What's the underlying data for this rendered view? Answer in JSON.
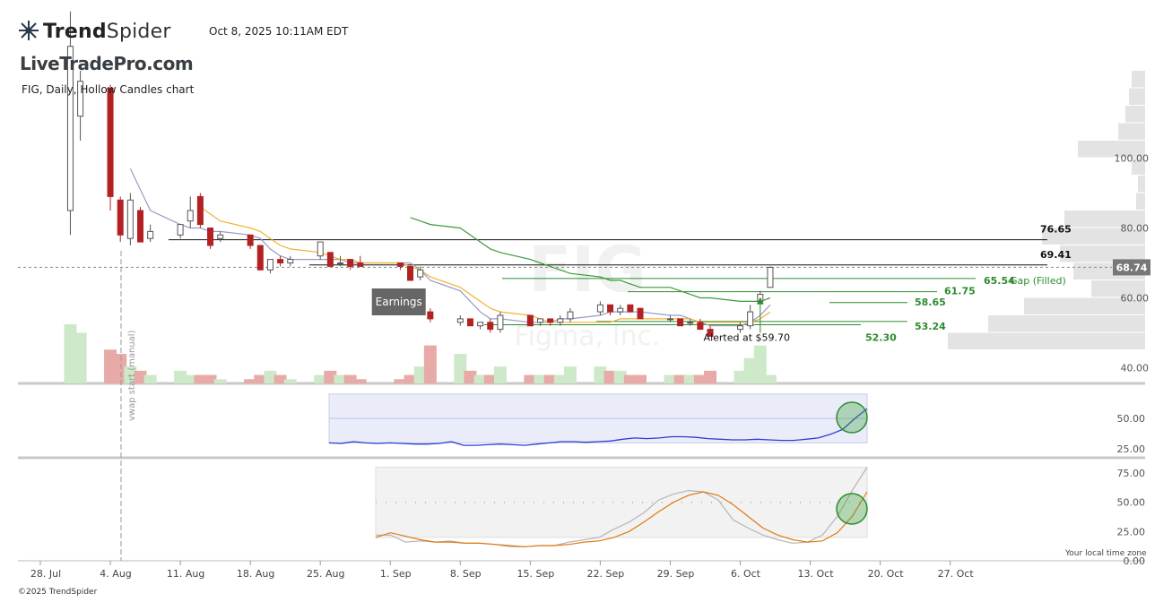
{
  "header": {
    "brand": "TrendSpider",
    "brand_bold": "Trend",
    "brand_light": "Spider",
    "timestamp": "Oct 8, 2025 10:11AM EDT",
    "watermark_site": "LiveTradePro.com",
    "chart_title": "FIG, Daily, Hollow Candles chart",
    "copyright": "©2025 TrendSpider",
    "timezone_note": "Your local time zone"
  },
  "icons": [
    "trendspider-logo-icon",
    "alert-arrow-icon",
    "highlight-circle-icon"
  ],
  "colors": {
    "bull": "#ffffff",
    "bear": "#b22222",
    "sma_short": "#9a9ac8",
    "sma_mid": "#f2b233",
    "sma_long": "#3c9a3c",
    "level_green": "#2e8b2e",
    "rsi_line": "#2a3fcf",
    "stoch_k": "#b5b5b5",
    "stoch_d": "#e07a10",
    "volume_up": "#cde9c9",
    "volume_down": "#e8aaa6"
  },
  "chart_data": [
    {
      "type": "candlestick",
      "name": "FIG price",
      "title": "FIG, Daily, Hollow Candles chart",
      "watermark": [
        "FIG",
        "Figma, Inc."
      ],
      "x_ticks": [
        "28. Jul",
        "4. Aug",
        "11. Aug",
        "18. Aug",
        "25. Aug",
        "1. Sep",
        "8. Sep",
        "15. Sep",
        "22. Sep",
        "29. Sep",
        "6. Oct",
        "13. Oct",
        "20. Oct",
        "27. Oct"
      ],
      "y_ticks": [
        40,
        60,
        80,
        100
      ],
      "y_range": [
        35,
        135
      ],
      "last_price": 68.74,
      "last_price_label": "68.74",
      "candles": [
        {
          "date": "Jul 31",
          "o": 85,
          "h": 142,
          "l": 78,
          "c": 132
        },
        {
          "date": "Aug 1",
          "o": 112,
          "h": 125,
          "l": 105,
          "c": 122
        },
        {
          "date": "Aug 4",
          "o": 120,
          "h": 121,
          "l": 85,
          "c": 89
        },
        {
          "date": "Aug 5",
          "o": 88,
          "h": 89,
          "l": 76,
          "c": 78
        },
        {
          "date": "Aug 6",
          "o": 77,
          "h": 90,
          "l": 75,
          "c": 88
        },
        {
          "date": "Aug 7",
          "o": 85,
          "h": 86,
          "l": 76,
          "c": 76
        },
        {
          "date": "Aug 8",
          "o": 77,
          "h": 81,
          "l": 76,
          "c": 79
        },
        {
          "date": "Aug 11",
          "o": 78,
          "h": 81,
          "l": 77,
          "c": 81
        },
        {
          "date": "Aug 12",
          "o": 82,
          "h": 89,
          "l": 80,
          "c": 85
        },
        {
          "date": "Aug 13",
          "o": 89,
          "h": 90,
          "l": 80,
          "c": 81
        },
        {
          "date": "Aug 14",
          "o": 80,
          "h": 80,
          "l": 74,
          "c": 75
        },
        {
          "date": "Aug 15",
          "o": 77,
          "h": 79,
          "l": 76,
          "c": 78
        },
        {
          "date": "Aug 18",
          "o": 78,
          "h": 78,
          "l": 74,
          "c": 75
        },
        {
          "date": "Aug 19",
          "o": 75,
          "h": 75,
          "l": 68,
          "c": 68
        },
        {
          "date": "Aug 20",
          "o": 68,
          "h": 71,
          "l": 67,
          "c": 71
        },
        {
          "date": "Aug 21",
          "o": 71,
          "h": 72,
          "l": 69,
          "c": 70
        },
        {
          "date": "Aug 22",
          "o": 70,
          "h": 72,
          "l": 69,
          "c": 71
        },
        {
          "date": "Aug 25",
          "o": 72,
          "h": 76,
          "l": 71,
          "c": 76
        },
        {
          "date": "Aug 26",
          "o": 73,
          "h": 73,
          "l": 69,
          "c": 69
        },
        {
          "date": "Aug 27",
          "o": 70,
          "h": 72,
          "l": 69,
          "c": 70
        },
        {
          "date": "Aug 28",
          "o": 71,
          "h": 71,
          "l": 68,
          "c": 69
        },
        {
          "date": "Aug 29",
          "o": 70,
          "h": 72,
          "l": 69,
          "c": 69
        },
        {
          "date": "Sep 2",
          "o": 70,
          "h": 70,
          "l": 68,
          "c": 69
        },
        {
          "date": "Sep 3",
          "o": 69,
          "h": 69,
          "l": 65,
          "c": 65
        },
        {
          "date": "Sep 4",
          "o": 66,
          "h": 69,
          "l": 65,
          "c": 68
        },
        {
          "date": "Sep 5",
          "o": 56,
          "h": 57,
          "l": 53,
          "c": 54
        },
        {
          "date": "Sep 8",
          "o": 53,
          "h": 55,
          "l": 52,
          "c": 54
        },
        {
          "date": "Sep 9",
          "o": 54,
          "h": 54,
          "l": 52,
          "c": 52
        },
        {
          "date": "Sep 10",
          "o": 52,
          "h": 53,
          "l": 51,
          "c": 53
        },
        {
          "date": "Sep 11",
          "o": 53,
          "h": 54,
          "l": 50,
          "c": 51
        },
        {
          "date": "Sep 12",
          "o": 51,
          "h": 56,
          "l": 50,
          "c": 55
        },
        {
          "date": "Sep 15",
          "o": 55,
          "h": 55,
          "l": 52,
          "c": 52
        },
        {
          "date": "Sep 16",
          "o": 53,
          "h": 54,
          "l": 52,
          "c": 54
        },
        {
          "date": "Sep 17",
          "o": 54,
          "h": 54,
          "l": 52,
          "c": 53
        },
        {
          "date": "Sep 18",
          "o": 53,
          "h": 55,
          "l": 52,
          "c": 54
        },
        {
          "date": "Sep 19",
          "o": 54,
          "h": 57,
          "l": 53,
          "c": 56
        },
        {
          "date": "Sep 22",
          "o": 56,
          "h": 59,
          "l": 55,
          "c": 58
        },
        {
          "date": "Sep 23",
          "o": 58,
          "h": 58,
          "l": 55,
          "c": 56
        },
        {
          "date": "Sep 24",
          "o": 56,
          "h": 58,
          "l": 55,
          "c": 57
        },
        {
          "date": "Sep 25",
          "o": 58,
          "h": 58,
          "l": 56,
          "c": 56
        },
        {
          "date": "Sep 26",
          "o": 57,
          "h": 57,
          "l": 54,
          "c": 54
        },
        {
          "date": "Sep 29",
          "o": 54,
          "h": 55,
          "l": 53,
          "c": 54
        },
        {
          "date": "Sep 30",
          "o": 54,
          "h": 54,
          "l": 52,
          "c": 52
        },
        {
          "date": "Oct 1",
          "o": 53,
          "h": 54,
          "l": 52,
          "c": 53
        },
        {
          "date": "Oct 2",
          "o": 53,
          "h": 54,
          "l": 51,
          "c": 51
        },
        {
          "date": "Oct 3",
          "o": 51,
          "h": 52,
          "l": 49,
          "c": 49
        },
        {
          "date": "Oct 6",
          "o": 51,
          "h": 53,
          "l": 50,
          "c": 52
        },
        {
          "date": "Oct 7",
          "o": 52,
          "h": 58,
          "l": 51,
          "c": 56
        },
        {
          "date": "Oct 8",
          "o": 59,
          "h": 62,
          "l": 58,
          "c": 61
        },
        {
          "date": "Oct 9",
          "o": 63,
          "h": 69,
          "l": 63,
          "c": 68.74
        }
      ],
      "moving_averages": [
        {
          "key": "sma_short",
          "values": [
            null,
            null,
            null,
            null,
            97,
            91,
            85,
            81,
            80,
            80,
            79,
            79,
            78,
            77,
            74,
            72,
            71,
            71,
            71,
            71,
            70,
            70,
            70,
            70,
            68,
            65,
            62,
            59,
            56,
            54,
            54,
            53,
            53,
            53,
            54,
            54,
            55,
            56,
            56,
            56,
            56,
            55,
            55,
            54,
            53,
            52,
            52,
            53,
            55,
            58
          ]
        },
        {
          "key": "sma_mid",
          "values": [
            null,
            null,
            null,
            null,
            null,
            null,
            null,
            null,
            null,
            86,
            84,
            82,
            80,
            79,
            77,
            75,
            74,
            73,
            72,
            71,
            71,
            70,
            70,
            69,
            68,
            66,
            63,
            61,
            59,
            57,
            56,
            55,
            54,
            53,
            53,
            53,
            53,
            53,
            54,
            54,
            54,
            54,
            54,
            54,
            53,
            53,
            53,
            53,
            54,
            56
          ]
        },
        {
          "key": "sma_long",
          "values": [
            null,
            null,
            null,
            null,
            null,
            null,
            null,
            null,
            null,
            null,
            null,
            null,
            null,
            null,
            null,
            null,
            null,
            null,
            null,
            null,
            null,
            null,
            null,
            83,
            82,
            81,
            80,
            78,
            76,
            74,
            73,
            71,
            70,
            69,
            68,
            67,
            66,
            65,
            65,
            64,
            63,
            63,
            62,
            61,
            60,
            60,
            59,
            59,
            59,
            60
          ]
        }
      ],
      "horizontal_levels": [
        {
          "value": 76.65,
          "label": "76.65"
        },
        {
          "value": 69.41,
          "label": "69.41"
        },
        {
          "value": 65.54,
          "label": "65.54",
          "note": "Gap (Filled)"
        },
        {
          "value": 61.75,
          "label": "61.75"
        },
        {
          "value": 58.65,
          "label": "58.65"
        },
        {
          "value": 53.24,
          "label": "53.24"
        },
        {
          "value": 52.3,
          "label": "52.30"
        }
      ],
      "annotations": [
        {
          "text": "Earnings",
          "date": "Sep 4"
        },
        {
          "text": "Alerted at $59.70",
          "date": "Oct 8",
          "value": 59.7
        },
        {
          "text": "vwap start (manual)",
          "date": "Aug 1"
        }
      ],
      "volume_profile": {
        "levels": [
          125,
          120,
          115,
          110,
          105,
          100,
          95,
          90,
          85,
          80,
          75,
          70,
          65,
          60,
          55,
          50
        ],
        "relative_volume": [
          0.15,
          0.18,
          0.22,
          0.3,
          0.75,
          0.15,
          0.08,
          0.1,
          0.9,
          1.15,
          0.95,
          0.8,
          0.6,
          1.35,
          1.75,
          2.2
        ]
      },
      "volume": [
        14,
        12,
        8,
        7,
        4,
        3,
        2,
        3,
        2,
        2,
        2,
        1,
        1,
        2,
        3,
        2,
        1,
        2,
        3,
        2,
        2,
        1,
        1,
        2,
        4,
        9,
        7,
        3,
        2,
        2,
        4,
        2,
        2,
        2,
        2,
        4,
        4,
        3,
        3,
        2,
        2,
        2,
        2,
        2,
        2,
        3,
        3,
        6,
        9,
        2
      ]
    },
    {
      "type": "line",
      "name": "RSI",
      "y_ticks": [
        25,
        50
      ],
      "y_range": [
        20,
        75
      ],
      "band": [
        30,
        70
      ],
      "midline": 50,
      "values": [
        30,
        29.5,
        31,
        30,
        29.5,
        30,
        29.5,
        29,
        29,
        29.5,
        31,
        28,
        28,
        28.5,
        29,
        28.5,
        28,
        29,
        30,
        31,
        31,
        30.5,
        31,
        31.5,
        33,
        34,
        33.5,
        34,
        35,
        35,
        34.5,
        33.5,
        33,
        32.5,
        32.5,
        33,
        32.5,
        32,
        32,
        33,
        34,
        37,
        41,
        50,
        58
      ]
    },
    {
      "type": "line",
      "name": "Stochastic",
      "y_ticks": [
        0,
        25,
        50,
        75
      ],
      "y_tick_labels": [
        "0.00",
        "25.00",
        "50.00",
        "75.00"
      ],
      "y_range": [
        0,
        85
      ],
      "band": [
        20,
        80
      ],
      "midline": 50,
      "series": [
        {
          "key": "stoch_k",
          "values": [
            22,
            22,
            16,
            17,
            16,
            17,
            15,
            15,
            14,
            12,
            12,
            13,
            13,
            16,
            18,
            20,
            27,
            33,
            41,
            52,
            57,
            60,
            59,
            52,
            35,
            28,
            22,
            18,
            15,
            16,
            22,
            38,
            60,
            80
          ]
        },
        {
          "key": "stoch_d",
          "values": [
            20,
            24,
            21,
            18,
            16,
            16,
            15,
            15,
            14,
            13,
            12,
            13,
            13,
            14,
            16,
            17,
            20,
            25,
            33,
            42,
            50,
            56,
            59,
            56,
            48,
            38,
            28,
            22,
            18,
            16,
            17,
            24,
            38,
            59
          ]
        }
      ]
    }
  ]
}
